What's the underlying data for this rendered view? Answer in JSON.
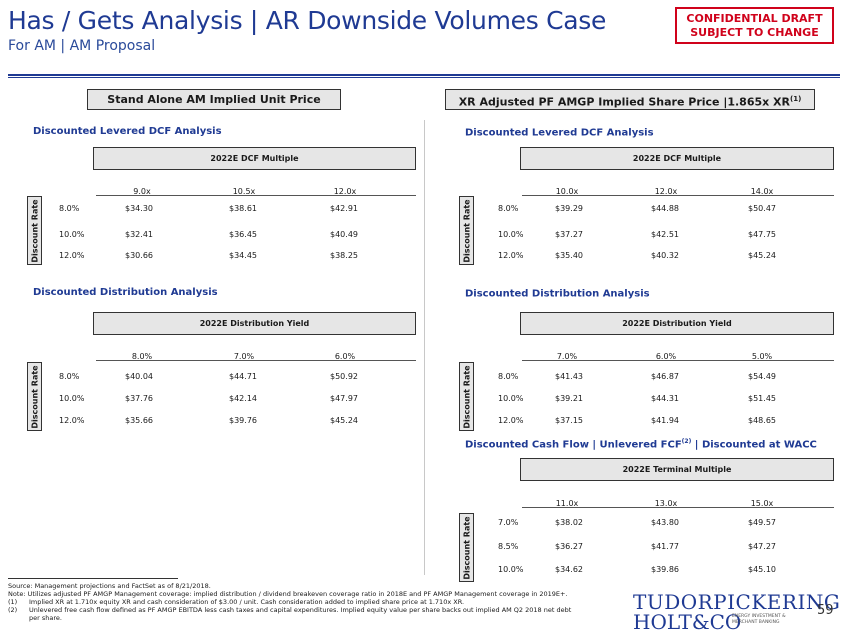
{
  "header": {
    "title": "Has / Gets Analysis | AR Downside Volumes Case",
    "subtitle": "For AM | AM Proposal",
    "confidential_line1": "CONFIDENTIAL DRAFT",
    "confidential_line2": "SUBJECT TO CHANGE"
  },
  "left_panel": {
    "header": "Stand Alone AM Implied Unit Price",
    "sections": [
      {
        "title": "Discounted Levered DCF Analysis",
        "matrix_header": "2022E DCF Multiple",
        "columns": [
          "9.0x",
          "10.5x",
          "12.0x"
        ],
        "row_axis": "Discount Rate",
        "rows": [
          {
            "rate": "8.0%",
            "values": [
              "$34.30",
              "$38.61",
              "$42.91"
            ]
          },
          {
            "rate": "10.0%",
            "values": [
              "$32.41",
              "$36.45",
              "$40.49"
            ]
          },
          {
            "rate": "12.0%",
            "values": [
              "$30.66",
              "$34.45",
              "$38.25"
            ]
          }
        ]
      },
      {
        "title": "Discounted Distribution Analysis",
        "matrix_header": "2022E Distribution Yield",
        "columns": [
          "8.0%",
          "7.0%",
          "6.0%"
        ],
        "row_axis": "Discount Rate",
        "rows": [
          {
            "rate": "8.0%",
            "values": [
              "$40.04",
              "$44.71",
              "$50.92"
            ]
          },
          {
            "rate": "10.0%",
            "values": [
              "$37.76",
              "$42.14",
              "$47.97"
            ]
          },
          {
            "rate": "12.0%",
            "values": [
              "$35.66",
              "$39.76",
              "$45.24"
            ]
          }
        ]
      }
    ]
  },
  "right_panel": {
    "header": "XR Adjusted PF AMGP Implied Share Price |1.865x XR",
    "header_sup": "(1)",
    "sections": [
      {
        "title": "Discounted Levered DCF Analysis",
        "title_sup": "",
        "title_suffix": "",
        "matrix_header": "2022E DCF Multiple",
        "columns": [
          "10.0x",
          "12.0x",
          "14.0x"
        ],
        "row_axis": "Discount Rate",
        "rows": [
          {
            "rate": "8.0%",
            "values": [
              "$39.29",
              "$44.88",
              "$50.47"
            ]
          },
          {
            "rate": "10.0%",
            "values": [
              "$37.27",
              "$42.51",
              "$47.75"
            ]
          },
          {
            "rate": "12.0%",
            "values": [
              "$35.40",
              "$40.32",
              "$45.24"
            ]
          }
        ]
      },
      {
        "title": "Discounted Distribution Analysis",
        "title_sup": "",
        "title_suffix": "",
        "matrix_header": "2022E Distribution Yield",
        "columns": [
          "7.0%",
          "6.0%",
          "5.0%"
        ],
        "row_axis": "Discount Rate",
        "rows": [
          {
            "rate": "8.0%",
            "values": [
              "$41.43",
              "$46.87",
              "$54.49"
            ]
          },
          {
            "rate": "10.0%",
            "values": [
              "$39.21",
              "$44.31",
              "$51.45"
            ]
          },
          {
            "rate": "12.0%",
            "values": [
              "$37.15",
              "$41.94",
              "$48.65"
            ]
          }
        ]
      },
      {
        "title": "Discounted Cash Flow | Unlevered FCF",
        "title_sup": "(2)",
        "title_suffix": " | Discounted at WACC",
        "matrix_header": "2022E Terminal Multiple",
        "columns": [
          "11.0x",
          "13.0x",
          "15.0x"
        ],
        "row_axis": "Discount Rate",
        "rows": [
          {
            "rate": "7.0%",
            "values": [
              "$38.02",
              "$43.80",
              "$49.57"
            ]
          },
          {
            "rate": "8.5%",
            "values": [
              "$36.27",
              "$41.77",
              "$47.27"
            ]
          },
          {
            "rate": "10.0%",
            "values": [
              "$34.62",
              "$39.86",
              "$45.10"
            ]
          }
        ]
      }
    ]
  },
  "footnotes": {
    "source": "Source: Management projections and FactSet as of 8/21/2018.",
    "note": "Note: Utilizes adjusted PF AMGP Management coverage: implied distribution / dividend breakeven coverage ratio in 2018E and PF AMGP Management coverage in 2019E+.",
    "items": [
      {
        "num": "(1)",
        "text": "Implied XR at 1.710x equity XR and cash consideration of $3.00 / unit. Cash consideration added to implied share price at 1.710x XR."
      },
      {
        "num": "(2)",
        "text": "Unlevered free cash flow defined as PF AMGP EBITDA less cash taxes and capital expenditures. Implied equity value per share backs out implied AM Q2 2018 net debt",
        "text2": "per share."
      }
    ]
  },
  "logo": {
    "line1": "TUDORPICKERING",
    "line2": "HOLT&CO",
    "tag1": "ENERGY INVESTMENT &",
    "tag2": "MERCHANT BANKING"
  },
  "page_number": "59",
  "colors": {
    "brand_blue": "#1f3a93",
    "confidential_red": "#d0021b",
    "header_fill": "#e6e6e6"
  }
}
